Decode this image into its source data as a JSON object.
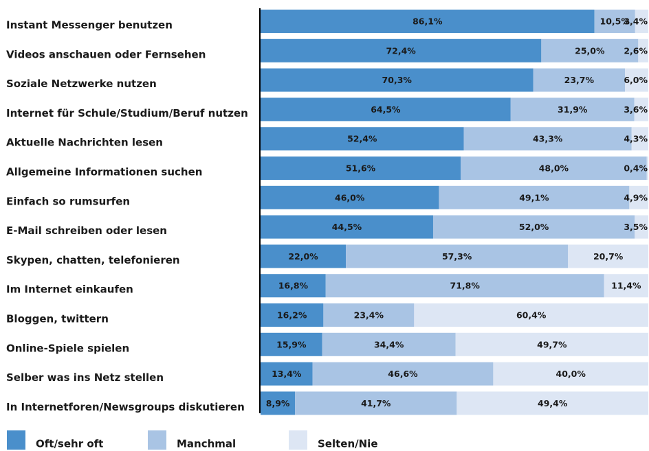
{
  "chart_data": {
    "type": "stacked-barh",
    "categories": [
      "Instant Messenger benutzen",
      "Videos anschauen oder Fernsehen",
      "Soziale Netzwerke nutzen",
      "Internet für Schule/Studium/Beruf nutzen",
      "Aktuelle Nachrichten lesen",
      "Allgemeine Informationen suchen",
      "Einfach so rumsurfen",
      "E-Mail schreiben oder lesen",
      "Skypen, chatten, telefonieren",
      "Im Internet einkaufen",
      "Bloggen, twittern",
      "Online-Spiele spielen",
      "Selber was ins Netz stellen",
      "In Internetforen/Newsgroups diskutieren"
    ],
    "xlim": [
      0,
      100
    ],
    "series": [
      {
        "name": "Oft/sehr oft",
        "color": "#4a8fcb",
        "values": [
          86.1,
          72.4,
          70.3,
          64.5,
          52.4,
          51.6,
          46.0,
          44.5,
          22.0,
          16.8,
          16.2,
          15.9,
          13.4,
          8.9
        ],
        "value_labels": [
          "86,1%",
          "72,4%",
          "70,3%",
          "64,5%",
          "52,4%",
          "51,6%",
          "46,0%",
          "44,5%",
          "22,0%",
          "16,8%",
          "16,2%",
          "15,9%",
          "13,4%",
          "8,9%"
        ]
      },
      {
        "name": "Manchmal",
        "color": "#a9c4e4",
        "values": [
          10.5,
          25.0,
          23.7,
          31.9,
          43.3,
          48.0,
          49.1,
          52.0,
          57.3,
          71.8,
          23.4,
          34.4,
          46.6,
          41.7
        ],
        "value_labels": [
          "10,5%",
          "25,0%",
          "23,7%",
          "31,9%",
          "43,3%",
          "48,0%",
          "49,1%",
          "52,0%",
          "57,3%",
          "71,8%",
          "23,4%",
          "34,4%",
          "46,6%",
          "41,7%"
        ]
      },
      {
        "name": "Selten/Nie",
        "color": "#dde6f4",
        "values": [
          3.4,
          2.6,
          6.0,
          3.6,
          4.3,
          0.4,
          4.9,
          3.5,
          20.7,
          11.4,
          60.4,
          49.7,
          40.0,
          49.4
        ],
        "value_labels": [
          "3,4%",
          "2,6%",
          "6,0%",
          "3,6%",
          "4,3%",
          "0,4%",
          "4,9%",
          "3,5%",
          "20,7%",
          "11,4%",
          "60,4%",
          "49,7%",
          "40,0%",
          "49,4%"
        ]
      }
    ]
  }
}
